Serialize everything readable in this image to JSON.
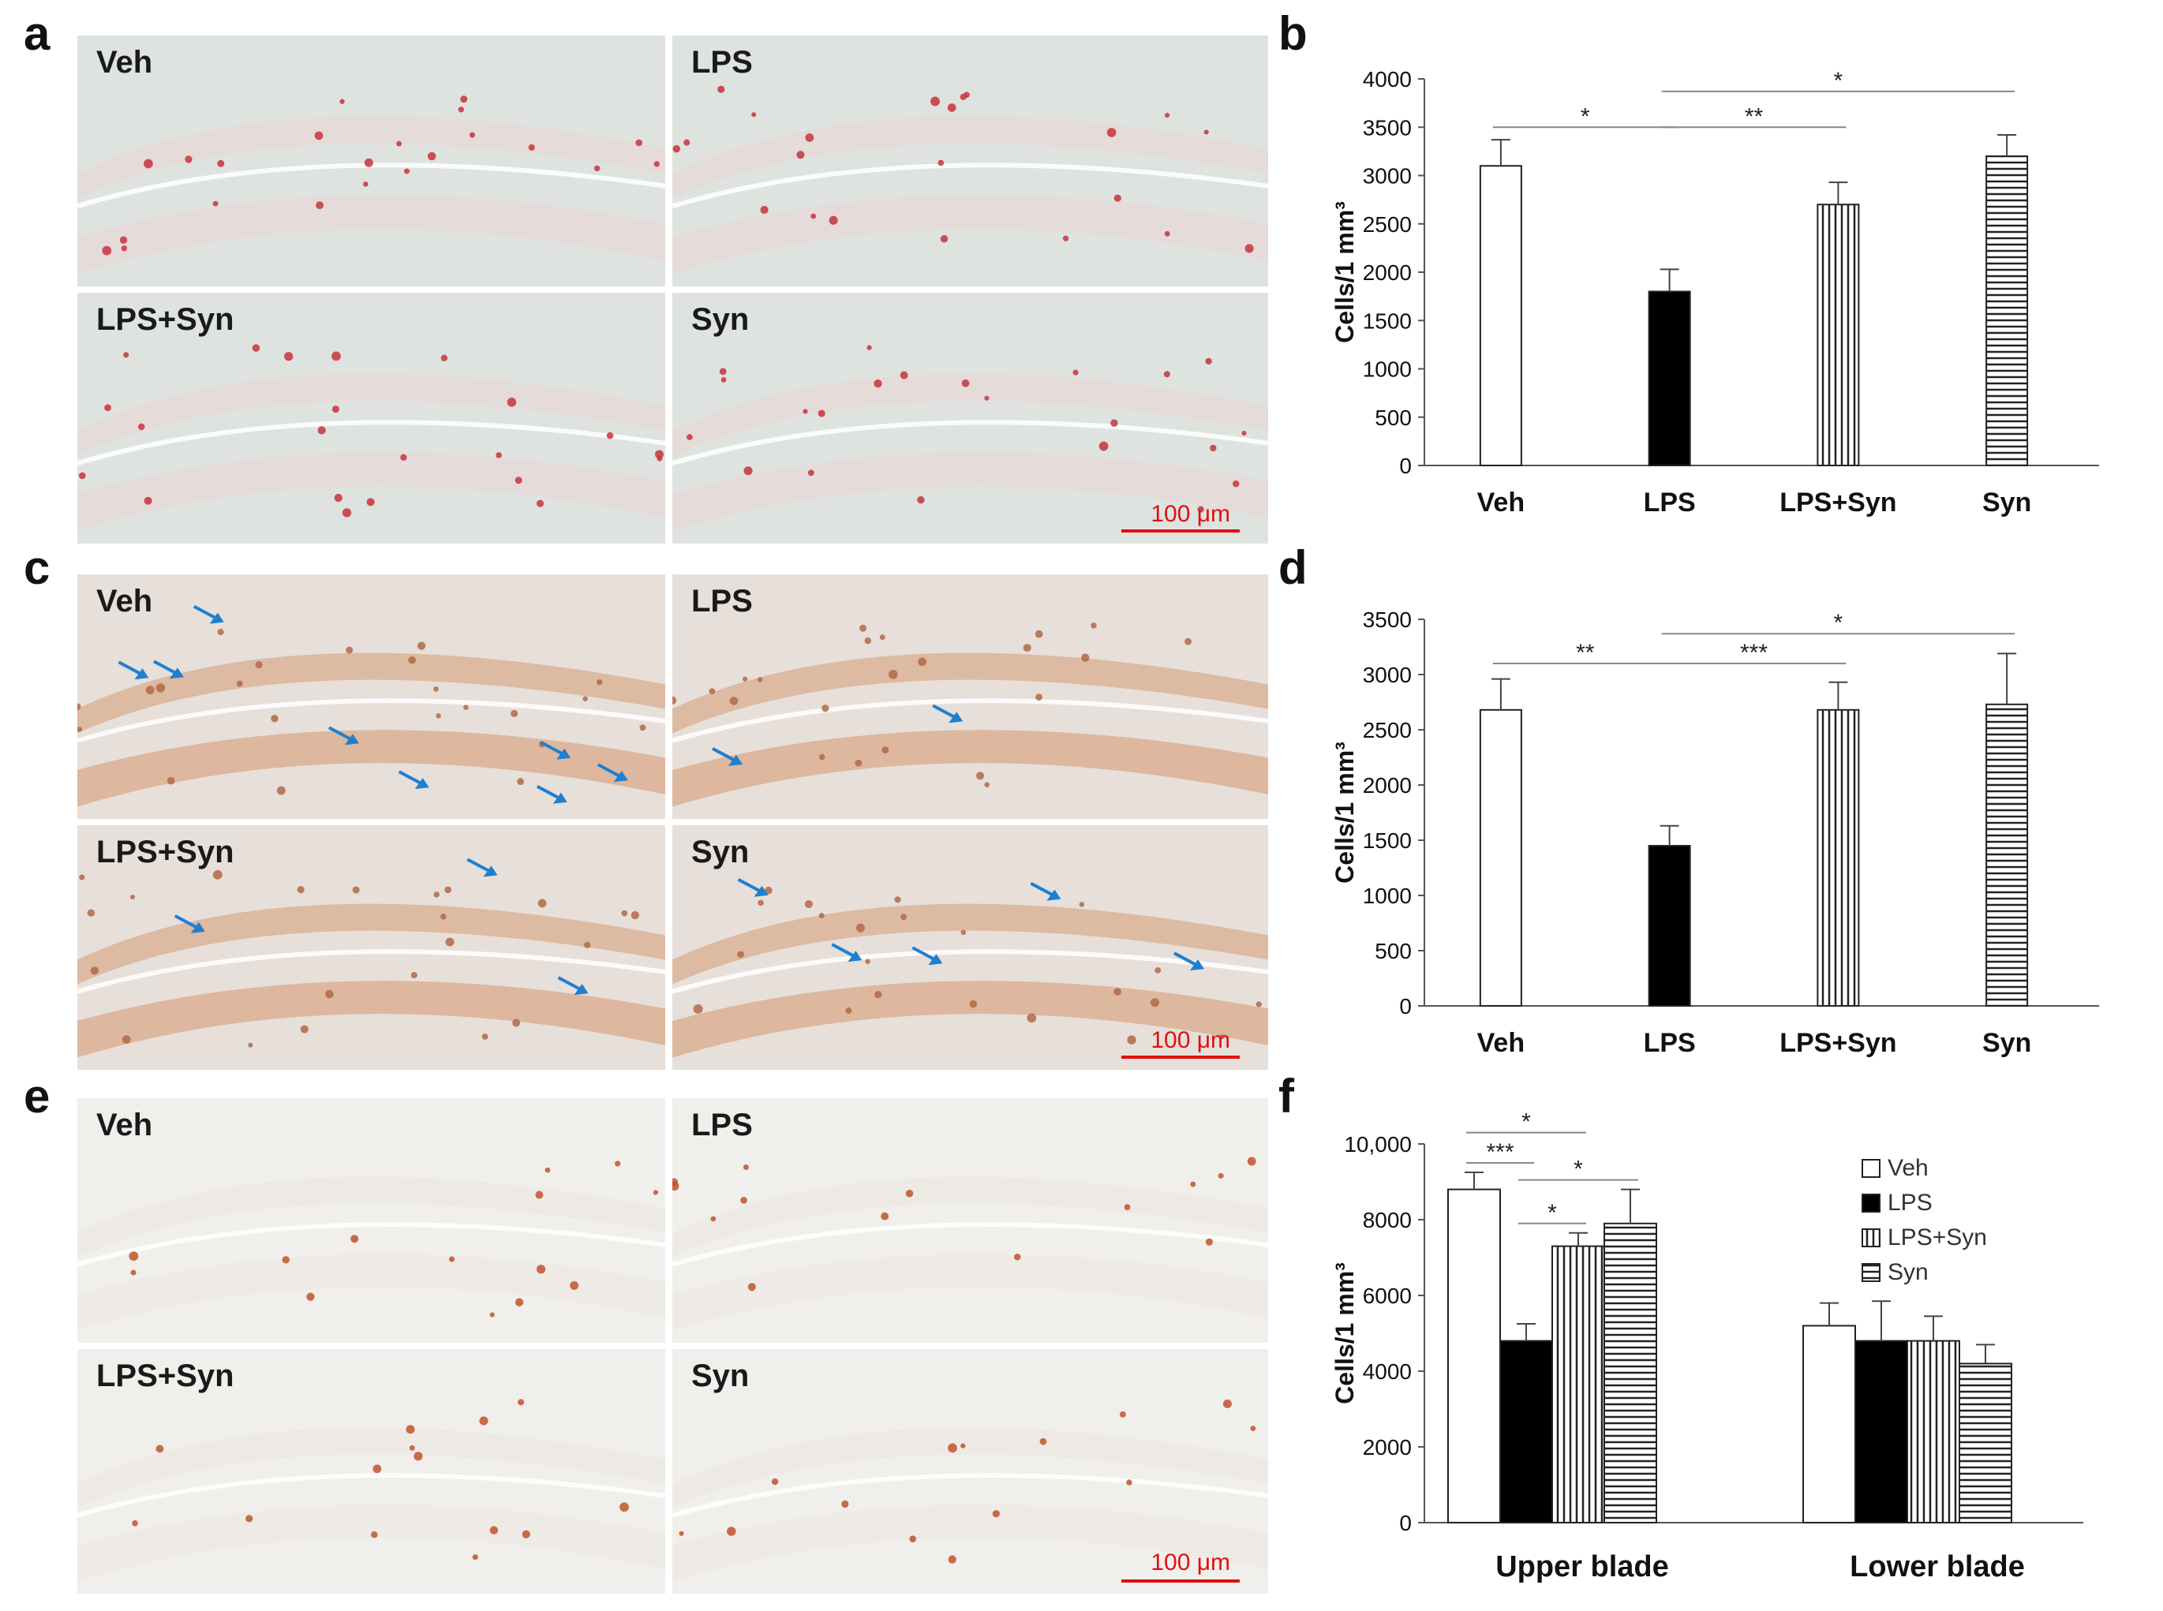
{
  "panel_letters": [
    "a",
    "b",
    "c",
    "d",
    "e",
    "f"
  ],
  "micrographs": {
    "a": {
      "labels": [
        "Veh",
        "LPS",
        "LPS+Syn",
        "Syn"
      ],
      "scale": "100 μm",
      "tone": "#dfe3df",
      "dot": "#c8323c"
    },
    "c": {
      "labels": [
        "Veh",
        "LPS",
        "LPS+Syn",
        "Syn"
      ],
      "scale": "100 μm",
      "tone": "#e7dfd9",
      "dot": "#b06a45"
    },
    "e": {
      "labels": [
        "Veh",
        "LPS",
        "LPS+Syn",
        "Syn"
      ],
      "scale": "100 μm",
      "tone": "#f1efec",
      "dot": "#c0532a"
    }
  },
  "colors": {
    "arrow": "#1f7fd0",
    "axis": "#555555",
    "scale": "#e01010"
  },
  "chart_data": [
    {
      "panel": "b",
      "type": "bar",
      "categories": [
        "Veh",
        "LPS",
        "LPS+Syn",
        "Syn"
      ],
      "values": [
        3100,
        1800,
        2700,
        3200
      ],
      "errors": [
        270,
        230,
        230,
        220
      ],
      "patterns": [
        "white",
        "black",
        "vertical",
        "horizontal"
      ],
      "ylabel": "Cells/1 mm³",
      "ylim": [
        0,
        4000
      ],
      "yticks": [
        "0",
        "500",
        "1000",
        "1500",
        "2000",
        "2500",
        "3000",
        "3500",
        "4000"
      ],
      "significance": [
        {
          "from": 0,
          "to": 1,
          "label": "*",
          "y": 3500
        },
        {
          "from": 1,
          "to": 2,
          "label": "**",
          "y": 3500
        },
        {
          "from": 1,
          "to": 3,
          "label": "*",
          "y": 3870
        }
      ]
    },
    {
      "panel": "d",
      "type": "bar",
      "categories": [
        "Veh",
        "LPS",
        "LPS+Syn",
        "Syn"
      ],
      "values": [
        2680,
        1450,
        2680,
        2730
      ],
      "errors": [
        280,
        180,
        250,
        460
      ],
      "patterns": [
        "white",
        "black",
        "vertical",
        "horizontal"
      ],
      "ylabel": "Cells/1 mm³",
      "ylim": [
        0,
        3500
      ],
      "yticks": [
        "0",
        "500",
        "1000",
        "1500",
        "2000",
        "2500",
        "3000",
        "3500"
      ],
      "significance": [
        {
          "from": 0,
          "to": 1,
          "label": "**",
          "y": 3100
        },
        {
          "from": 1,
          "to": 2,
          "label": "***",
          "y": 3100
        },
        {
          "from": 1,
          "to": 3,
          "label": "*",
          "y": 3370
        }
      ]
    },
    {
      "panel": "f",
      "type": "bar",
      "categories": [
        "Upper blade",
        "Lower blade"
      ],
      "series": [
        {
          "name": "Veh",
          "values": [
            8800,
            5200
          ],
          "errors": [
            450,
            600
          ],
          "pattern": "white"
        },
        {
          "name": "LPS",
          "values": [
            4800,
            4800
          ],
          "errors": [
            450,
            1050
          ],
          "pattern": "black"
        },
        {
          "name": "LPS+Syn",
          "values": [
            7300,
            4800
          ],
          "errors": [
            350,
            650
          ],
          "pattern": "vertical"
        },
        {
          "name": "Syn",
          "values": [
            7900,
            4200
          ],
          "errors": [
            900,
            500
          ],
          "pattern": "horizontal"
        }
      ],
      "ylabel": "Cells/1 mm³",
      "ylim": [
        0,
        10000
      ],
      "yticks": [
        "0",
        "2000",
        "4000",
        "6000",
        "8000",
        "10,000"
      ],
      "legend": "right",
      "significance": [
        {
          "from": 0,
          "to": 1,
          "label": "***",
          "y": 9500
        },
        {
          "from": 0,
          "to": 2,
          "label": "*",
          "y": 10300
        },
        {
          "from": 1,
          "to": 3,
          "label": "*",
          "y": 9050
        },
        {
          "from": 1,
          "to": 2,
          "label": "*",
          "y": 7900
        }
      ]
    }
  ]
}
